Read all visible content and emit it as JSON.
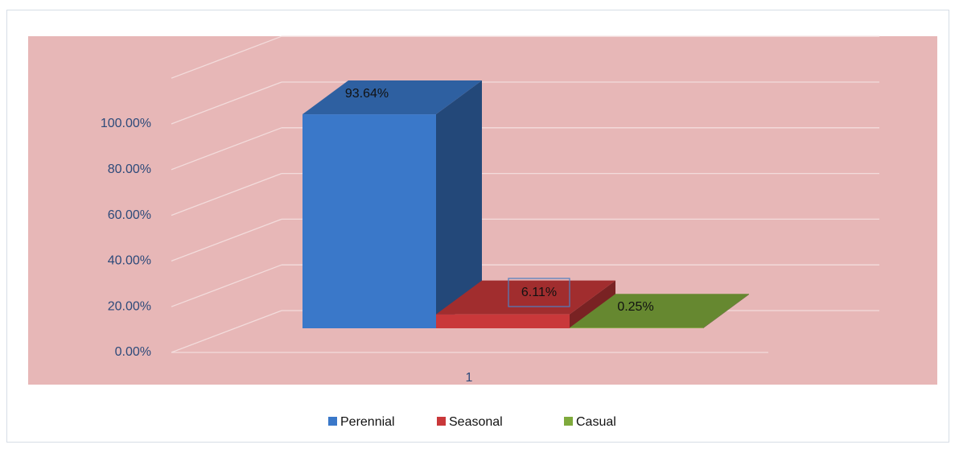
{
  "chart_data": {
    "type": "bar",
    "categories": [
      "1"
    ],
    "series": [
      {
        "name": "Perennial",
        "color": "#3a78c9",
        "values": [
          93.64
        ],
        "value_labels": [
          "93.64%"
        ]
      },
      {
        "name": "Seasonal",
        "color": "#c9383a",
        "values": [
          6.11
        ],
        "value_labels": [
          "6.11%"
        ]
      },
      {
        "name": "Casual",
        "color": "#7faa3c",
        "values": [
          0.25
        ],
        "value_labels": [
          "0.25%"
        ]
      }
    ],
    "ylim": [
      0,
      120
    ],
    "yticks": [
      {
        "value": 0,
        "label": "0.00%"
      },
      {
        "value": 20,
        "label": "20.00%"
      },
      {
        "value": 40,
        "label": "40.00%"
      },
      {
        "value": 60,
        "label": "60.00%"
      },
      {
        "value": 80,
        "label": "80.00%"
      },
      {
        "value": 100,
        "label": "100.00%"
      }
    ],
    "grid": true,
    "legend": "bottom"
  }
}
